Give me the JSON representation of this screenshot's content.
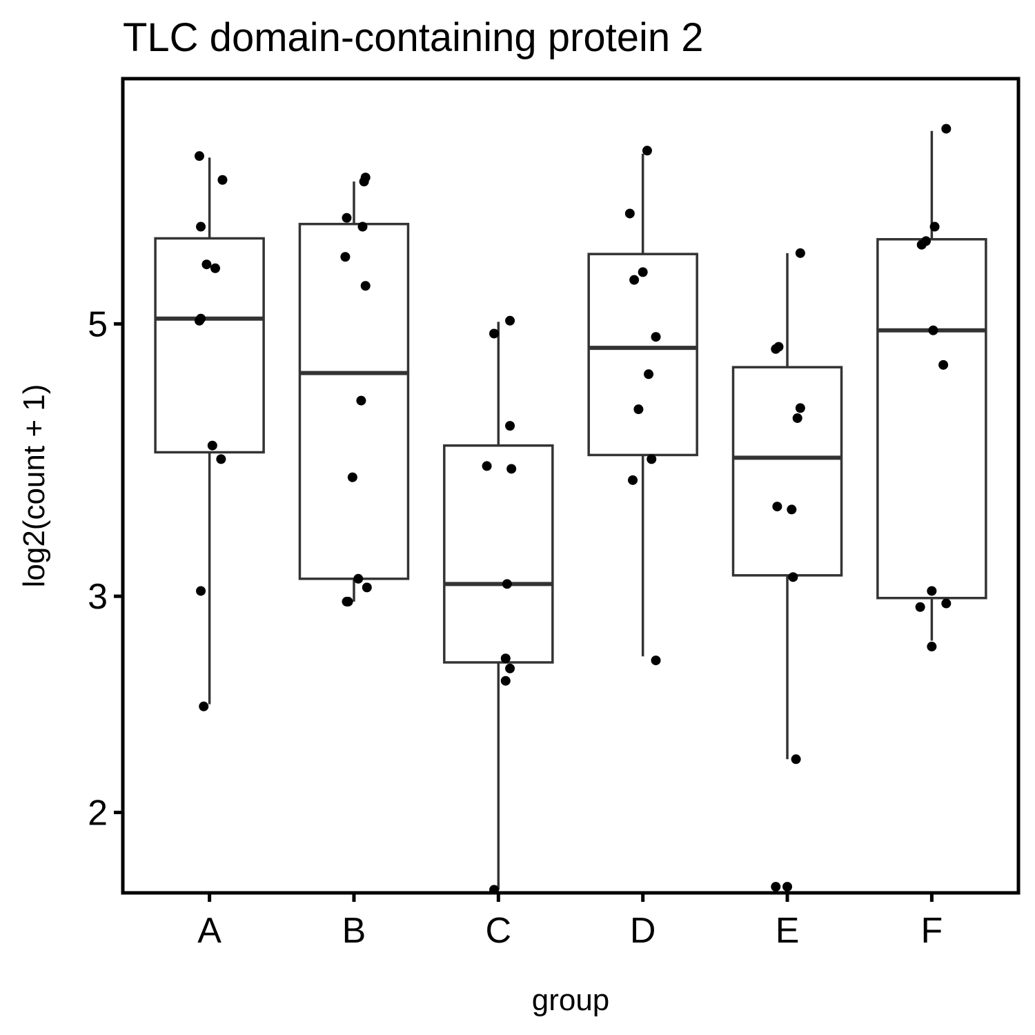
{
  "chart_data": {
    "type": "box",
    "title": "TLC domain-containing protein 2",
    "xlabel": "group",
    "ylabel": "log2(count + 1)",
    "y_scale": "log",
    "y_ticks": [
      2,
      3,
      5
    ],
    "ylim": [
      1.72,
      7.92
    ],
    "categories": [
      "A",
      "B",
      "C",
      "D",
      "E",
      "F"
    ],
    "boxes": [
      {
        "group": "A",
        "lower": 2.45,
        "q1": 3.93,
        "median": 5.05,
        "q3": 5.87,
        "upper": 6.83
      },
      {
        "group": "B",
        "lower": 2.97,
        "q1": 3.1,
        "median": 4.56,
        "q3": 6.03,
        "upper": 6.53
      },
      {
        "group": "C",
        "lower": 1.73,
        "q1": 2.65,
        "median": 3.07,
        "q3": 3.98,
        "upper": 5.02
      },
      {
        "group": "D",
        "lower": 2.68,
        "q1": 3.91,
        "median": 4.78,
        "q3": 5.7,
        "upper": 6.88
      },
      {
        "group": "E",
        "lower": 2.21,
        "q1": 3.12,
        "median": 3.89,
        "q3": 4.61,
        "upper": 5.71
      },
      {
        "group": "F",
        "lower": 2.76,
        "q1": 2.99,
        "median": 4.94,
        "q3": 5.86,
        "upper": 7.18
      }
    ],
    "points": [
      {
        "group": "A",
        "dx": -0.07,
        "y": 6.85
      },
      {
        "group": "A",
        "dx": 0.09,
        "y": 6.55
      },
      {
        "group": "A",
        "dx": -0.06,
        "y": 6.0
      },
      {
        "group": "A",
        "dx": -0.02,
        "y": 5.59
      },
      {
        "group": "A",
        "dx": 0.04,
        "y": 5.55
      },
      {
        "group": "A",
        "dx": -0.07,
        "y": 5.03
      },
      {
        "group": "A",
        "dx": -0.06,
        "y": 5.05
      },
      {
        "group": "A",
        "dx": 0.02,
        "y": 3.98
      },
      {
        "group": "A",
        "dx": 0.08,
        "y": 3.88
      },
      {
        "group": "A",
        "dx": -0.06,
        "y": 3.03
      },
      {
        "group": "A",
        "dx": -0.04,
        "y": 2.44
      },
      {
        "group": "B",
        "dx": 0.07,
        "y": 6.53
      },
      {
        "group": "B",
        "dx": 0.08,
        "y": 6.58
      },
      {
        "group": "B",
        "dx": -0.05,
        "y": 6.1
      },
      {
        "group": "B",
        "dx": 0.06,
        "y": 6.0
      },
      {
        "group": "B",
        "dx": -0.06,
        "y": 5.67
      },
      {
        "group": "B",
        "dx": 0.08,
        "y": 5.37
      },
      {
        "group": "B",
        "dx": 0.05,
        "y": 4.33
      },
      {
        "group": "B",
        "dx": -0.01,
        "y": 3.75
      },
      {
        "group": "B",
        "dx": 0.03,
        "y": 3.1
      },
      {
        "group": "B",
        "dx": 0.09,
        "y": 3.05
      },
      {
        "group": "B",
        "dx": -0.04,
        "y": 2.97
      },
      {
        "group": "B",
        "dx": -0.05,
        "y": 2.97
      },
      {
        "group": "C",
        "dx": 0.08,
        "y": 5.03
      },
      {
        "group": "C",
        "dx": -0.03,
        "y": 4.91
      },
      {
        "group": "C",
        "dx": 0.08,
        "y": 4.13
      },
      {
        "group": "C",
        "dx": -0.08,
        "y": 3.83
      },
      {
        "group": "C",
        "dx": 0.09,
        "y": 3.81
      },
      {
        "group": "C",
        "dx": 0.06,
        "y": 3.07
      },
      {
        "group": "C",
        "dx": 0.05,
        "y": 2.67
      },
      {
        "group": "C",
        "dx": 0.08,
        "y": 2.62
      },
      {
        "group": "C",
        "dx": 0.05,
        "y": 2.56
      },
      {
        "group": "C",
        "dx": -0.03,
        "y": 1.73
      },
      {
        "group": "D",
        "dx": 0.03,
        "y": 6.92
      },
      {
        "group": "D",
        "dx": -0.09,
        "y": 6.15
      },
      {
        "group": "D",
        "dx": 0.0,
        "y": 5.51
      },
      {
        "group": "D",
        "dx": -0.06,
        "y": 5.43
      },
      {
        "group": "D",
        "dx": 0.09,
        "y": 4.88
      },
      {
        "group": "D",
        "dx": 0.04,
        "y": 4.55
      },
      {
        "group": "D",
        "dx": -0.03,
        "y": 4.26
      },
      {
        "group": "D",
        "dx": 0.06,
        "y": 3.88
      },
      {
        "group": "D",
        "dx": -0.07,
        "y": 3.73
      },
      {
        "group": "D",
        "dx": 0.09,
        "y": 2.66
      },
      {
        "group": "E",
        "dx": 0.09,
        "y": 5.71
      },
      {
        "group": "E",
        "dx": -0.08,
        "y": 4.77
      },
      {
        "group": "E",
        "dx": -0.06,
        "y": 4.79
      },
      {
        "group": "E",
        "dx": 0.09,
        "y": 4.27
      },
      {
        "group": "E",
        "dx": 0.07,
        "y": 4.19
      },
      {
        "group": "E",
        "dx": -0.07,
        "y": 3.55
      },
      {
        "group": "E",
        "dx": 0.03,
        "y": 3.53
      },
      {
        "group": "E",
        "dx": 0.04,
        "y": 3.11
      },
      {
        "group": "E",
        "dx": 0.06,
        "y": 2.21
      },
      {
        "group": "E",
        "dx": -0.08,
        "y": 1.74
      },
      {
        "group": "E",
        "dx": 0.0,
        "y": 1.74
      },
      {
        "group": "F",
        "dx": 0.1,
        "y": 7.21
      },
      {
        "group": "F",
        "dx": 0.02,
        "y": 6.0
      },
      {
        "group": "F",
        "dx": -0.04,
        "y": 5.84
      },
      {
        "group": "F",
        "dx": -0.07,
        "y": 5.8
      },
      {
        "group": "F",
        "dx": 0.01,
        "y": 4.94
      },
      {
        "group": "F",
        "dx": 0.08,
        "y": 4.63
      },
      {
        "group": "F",
        "dx": 0.0,
        "y": 3.03
      },
      {
        "group": "F",
        "dx": -0.08,
        "y": 2.94
      },
      {
        "group": "F",
        "dx": 0.1,
        "y": 2.96
      },
      {
        "group": "F",
        "dx": 0.0,
        "y": 2.73
      }
    ],
    "grid": false,
    "legend": "none"
  }
}
